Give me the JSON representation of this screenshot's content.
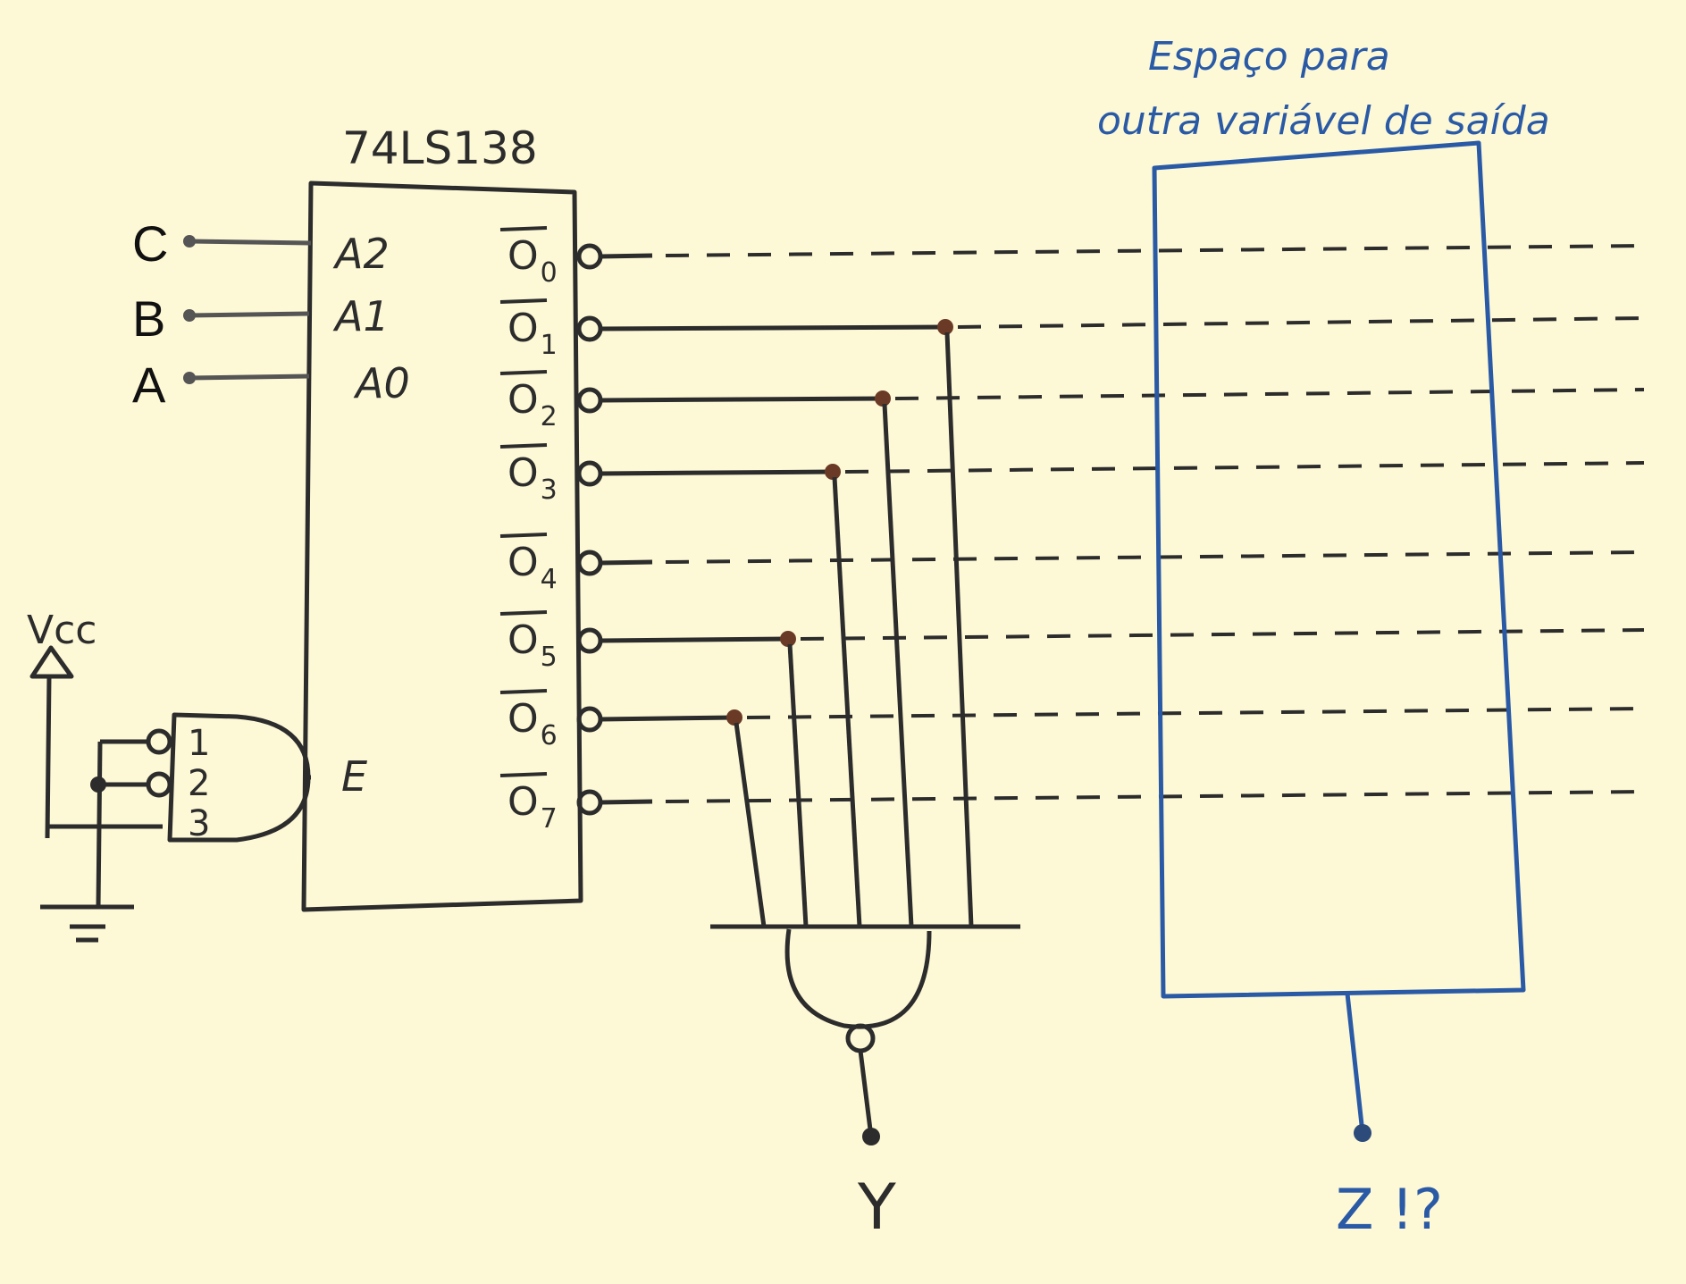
{
  "chip": {
    "name": "74LS138",
    "inputs": [
      "A2",
      "A1",
      "A0"
    ],
    "enable": "E",
    "gate_pins": [
      "1",
      "2",
      "3"
    ],
    "outputs": [
      "0",
      "1",
      "2",
      "3",
      "4",
      "5",
      "6",
      "7"
    ]
  },
  "input_labels": [
    "C",
    "B",
    "A"
  ],
  "power": {
    "vcc": "Vcc"
  },
  "output_y": "Y",
  "box": {
    "caption_line1": "Espaço para",
    "caption_line2": "outra variável de saída",
    "output": "Z !?"
  },
  "colors": {
    "ink": "#2c2c2c",
    "blue_ink": "#2a5aa6",
    "wire": "#555555",
    "junction": "#6b3a26",
    "paper": "#fdf9d6"
  }
}
